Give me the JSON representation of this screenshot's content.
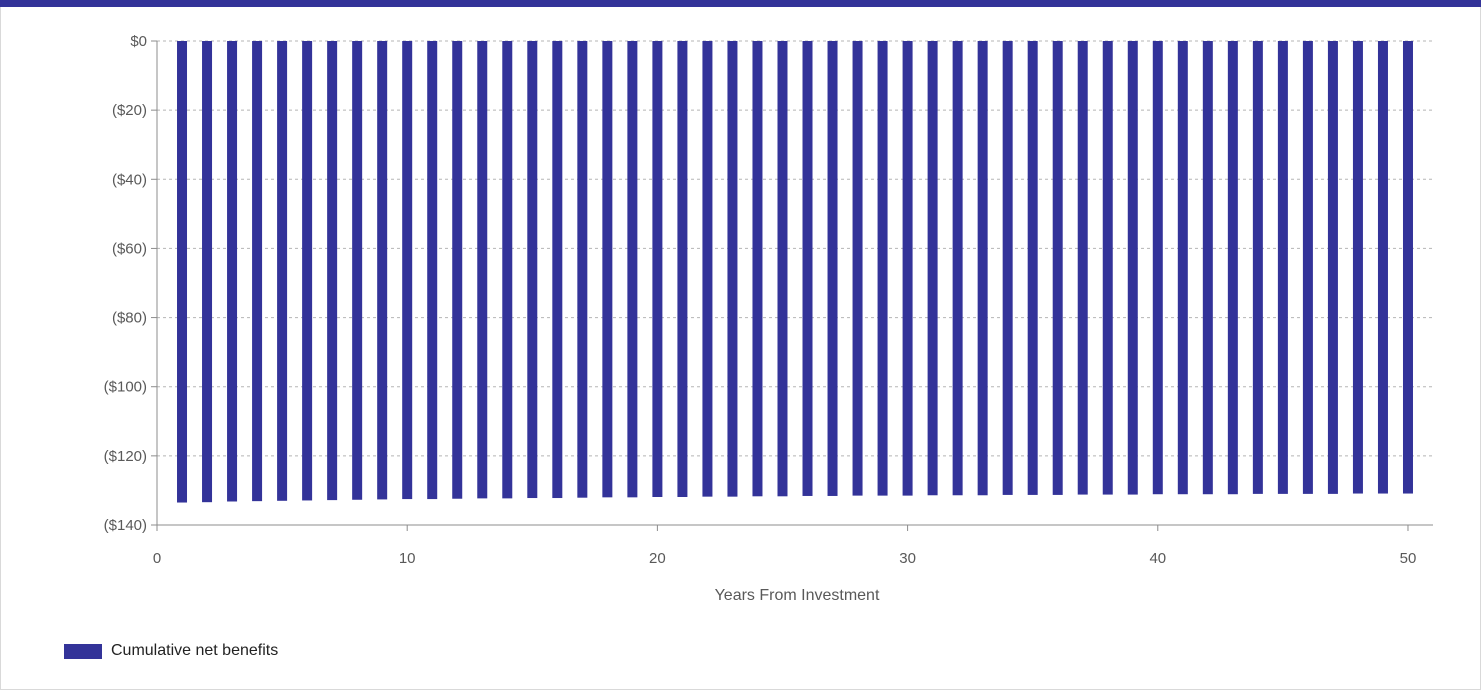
{
  "colors": {
    "accent": "#333399",
    "grid": "#b5b5b5",
    "axis": "#8c8c8c",
    "text": "#595959"
  },
  "legend": {
    "label": "Cumulative net benefits"
  },
  "chart_data": {
    "type": "bar",
    "title": "",
    "xlabel": "Years From Investment",
    "ylabel": "",
    "xlim": [
      0,
      51
    ],
    "ylim": [
      -140,
      0
    ],
    "x_ticks": [
      0,
      10,
      20,
      30,
      40,
      50
    ],
    "x_tick_labels": [
      "0",
      "10",
      "20",
      "30",
      "40",
      "50"
    ],
    "y_ticks": [
      0,
      -20,
      -40,
      -60,
      -80,
      -100,
      -120,
      -140
    ],
    "y_tick_labels": [
      "$0",
      "($20)",
      "($40)",
      "($60)",
      "($80)",
      "($100)",
      "($120)",
      "($140)"
    ],
    "grid": "horizontal dashed",
    "legend_position": "bottom-left",
    "series": [
      {
        "name": "Cumulative net benefits",
        "x": [
          1,
          2,
          3,
          4,
          5,
          6,
          7,
          8,
          9,
          10,
          11,
          12,
          13,
          14,
          15,
          16,
          17,
          18,
          19,
          20,
          21,
          22,
          23,
          24,
          25,
          26,
          27,
          28,
          29,
          30,
          31,
          32,
          33,
          34,
          35,
          36,
          37,
          38,
          39,
          40,
          41,
          42,
          43,
          44,
          45,
          46,
          47,
          48,
          49,
          50
        ],
        "values": [
          -133.5,
          -133.4,
          -133.2,
          -133.1,
          -133.0,
          -132.9,
          -132.8,
          -132.7,
          -132.6,
          -132.5,
          -132.5,
          -132.4,
          -132.3,
          -132.3,
          -132.2,
          -132.2,
          -132.1,
          -132.0,
          -132.0,
          -131.9,
          -131.9,
          -131.8,
          -131.8,
          -131.7,
          -131.7,
          -131.6,
          -131.6,
          -131.5,
          -131.5,
          -131.5,
          -131.4,
          -131.4,
          -131.4,
          -131.3,
          -131.3,
          -131.3,
          -131.2,
          -131.2,
          -131.2,
          -131.1,
          -131.1,
          -131.1,
          -131.1,
          -131.0,
          -131.0,
          -131.0,
          -131.0,
          -130.9,
          -130.9,
          -130.9
        ]
      }
    ]
  }
}
